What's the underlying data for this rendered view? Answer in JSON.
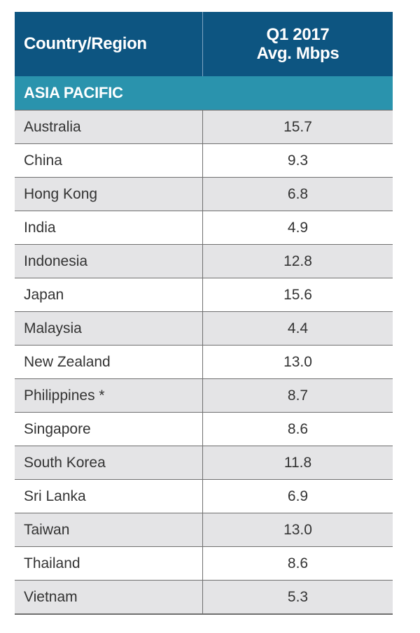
{
  "chart_data": {
    "type": "table",
    "columns": [
      "Country/Region",
      "Q1 2017",
      "Avg. Mbps"
    ],
    "header": {
      "country": "Country/Region",
      "value_line1": "Q1 2017",
      "value_line2": "Avg. Mbps"
    },
    "region": "ASIA PACIFIC",
    "rows": [
      {
        "country": "Australia",
        "value": "15.7"
      },
      {
        "country": "China",
        "value": "9.3"
      },
      {
        "country": "Hong Kong",
        "value": "6.8"
      },
      {
        "country": "India",
        "value": "4.9"
      },
      {
        "country": "Indonesia",
        "value": "12.8"
      },
      {
        "country": "Japan",
        "value": "15.6"
      },
      {
        "country": "Malaysia",
        "value": "4.4"
      },
      {
        "country": "New Zealand",
        "value": "13.0"
      },
      {
        "country": "Philippines *",
        "value": "8.7"
      },
      {
        "country": "Singapore",
        "value": "8.6"
      },
      {
        "country": "South Korea",
        "value": "11.8"
      },
      {
        "country": "Sri Lanka",
        "value": "6.9"
      },
      {
        "country": "Taiwan",
        "value": "13.0"
      },
      {
        "country": "Thailand",
        "value": "8.6"
      },
      {
        "country": "Vietnam",
        "value": "5.3"
      }
    ]
  },
  "colors": {
    "header_bg": "#0d5581",
    "region_bg": "#2a93ad",
    "row_alt_bg": "#e4e4e6",
    "row_bg": "#ffffff",
    "text": "#333333"
  }
}
